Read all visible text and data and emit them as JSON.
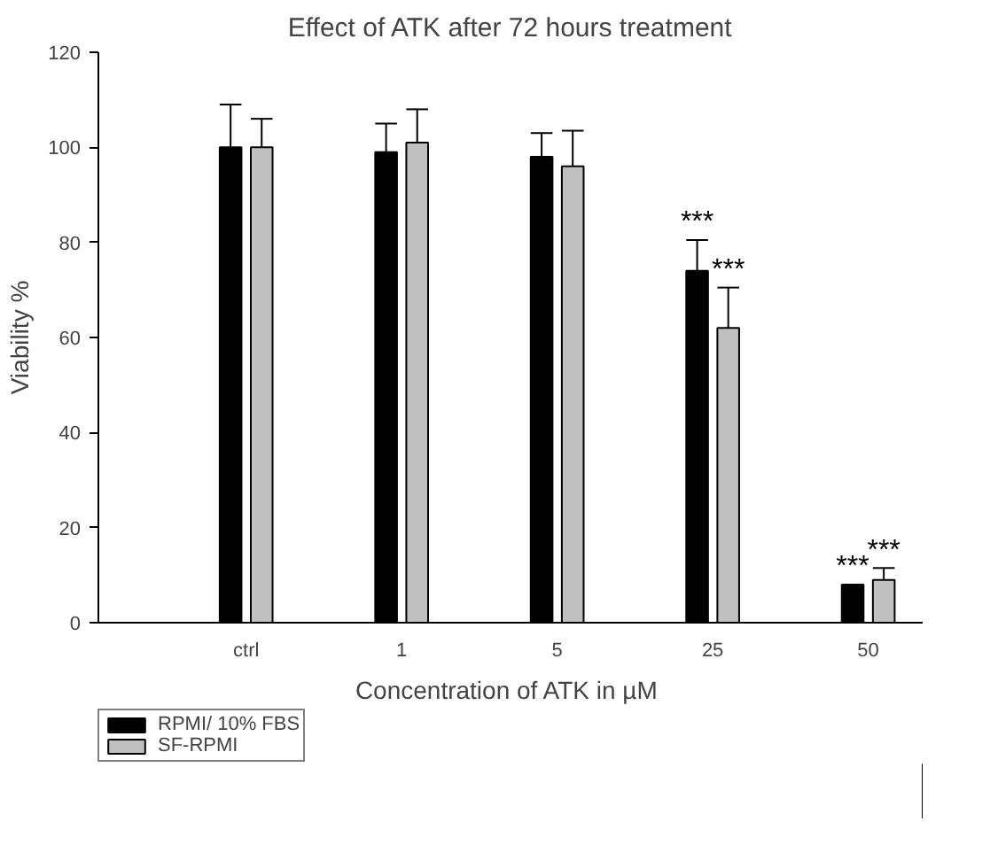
{
  "chart_data": {
    "type": "bar",
    "title": "Effect of ATK after 72 hours treatment",
    "xlabel": "Concentration of ATK in  µM",
    "ylabel": "Viability %",
    "categories": [
      "ctrl",
      "1",
      "5",
      "25",
      "50"
    ],
    "series": [
      {
        "name": "RPMI/ 10% FBS",
        "color": "#000000",
        "values": [
          100,
          99,
          98,
          74,
          8
        ],
        "errors": [
          [
            100,
            109
          ],
          [
            99,
            105
          ],
          [
            98,
            103
          ],
          [
            74,
            80.5
          ],
          [
            8,
            8
          ]
        ]
      },
      {
        "name": "SF-RPMI",
        "color": "#c0c0c0",
        "values": [
          100,
          101,
          96,
          62,
          9
        ],
        "errors": [
          [
            100,
            106
          ],
          [
            101,
            108
          ],
          [
            96,
            103.5
          ],
          [
            62,
            70.5
          ],
          [
            9,
            11.5
          ]
        ]
      }
    ],
    "annotations": [
      {
        "text": "***",
        "x": "25",
        "y": 80.5
      },
      {
        "text": "***",
        "x": "25",
        "y": 70.5
      },
      {
        "text": "***",
        "x": "50",
        "y": 8
      },
      {
        "text": "***",
        "x": "50",
        "y": 11.5
      }
    ],
    "ylim": [
      0,
      120
    ],
    "yticks": [
      0,
      20,
      40,
      60,
      80,
      100,
      120
    ],
    "grid": false,
    "legend": "bottom left"
  }
}
